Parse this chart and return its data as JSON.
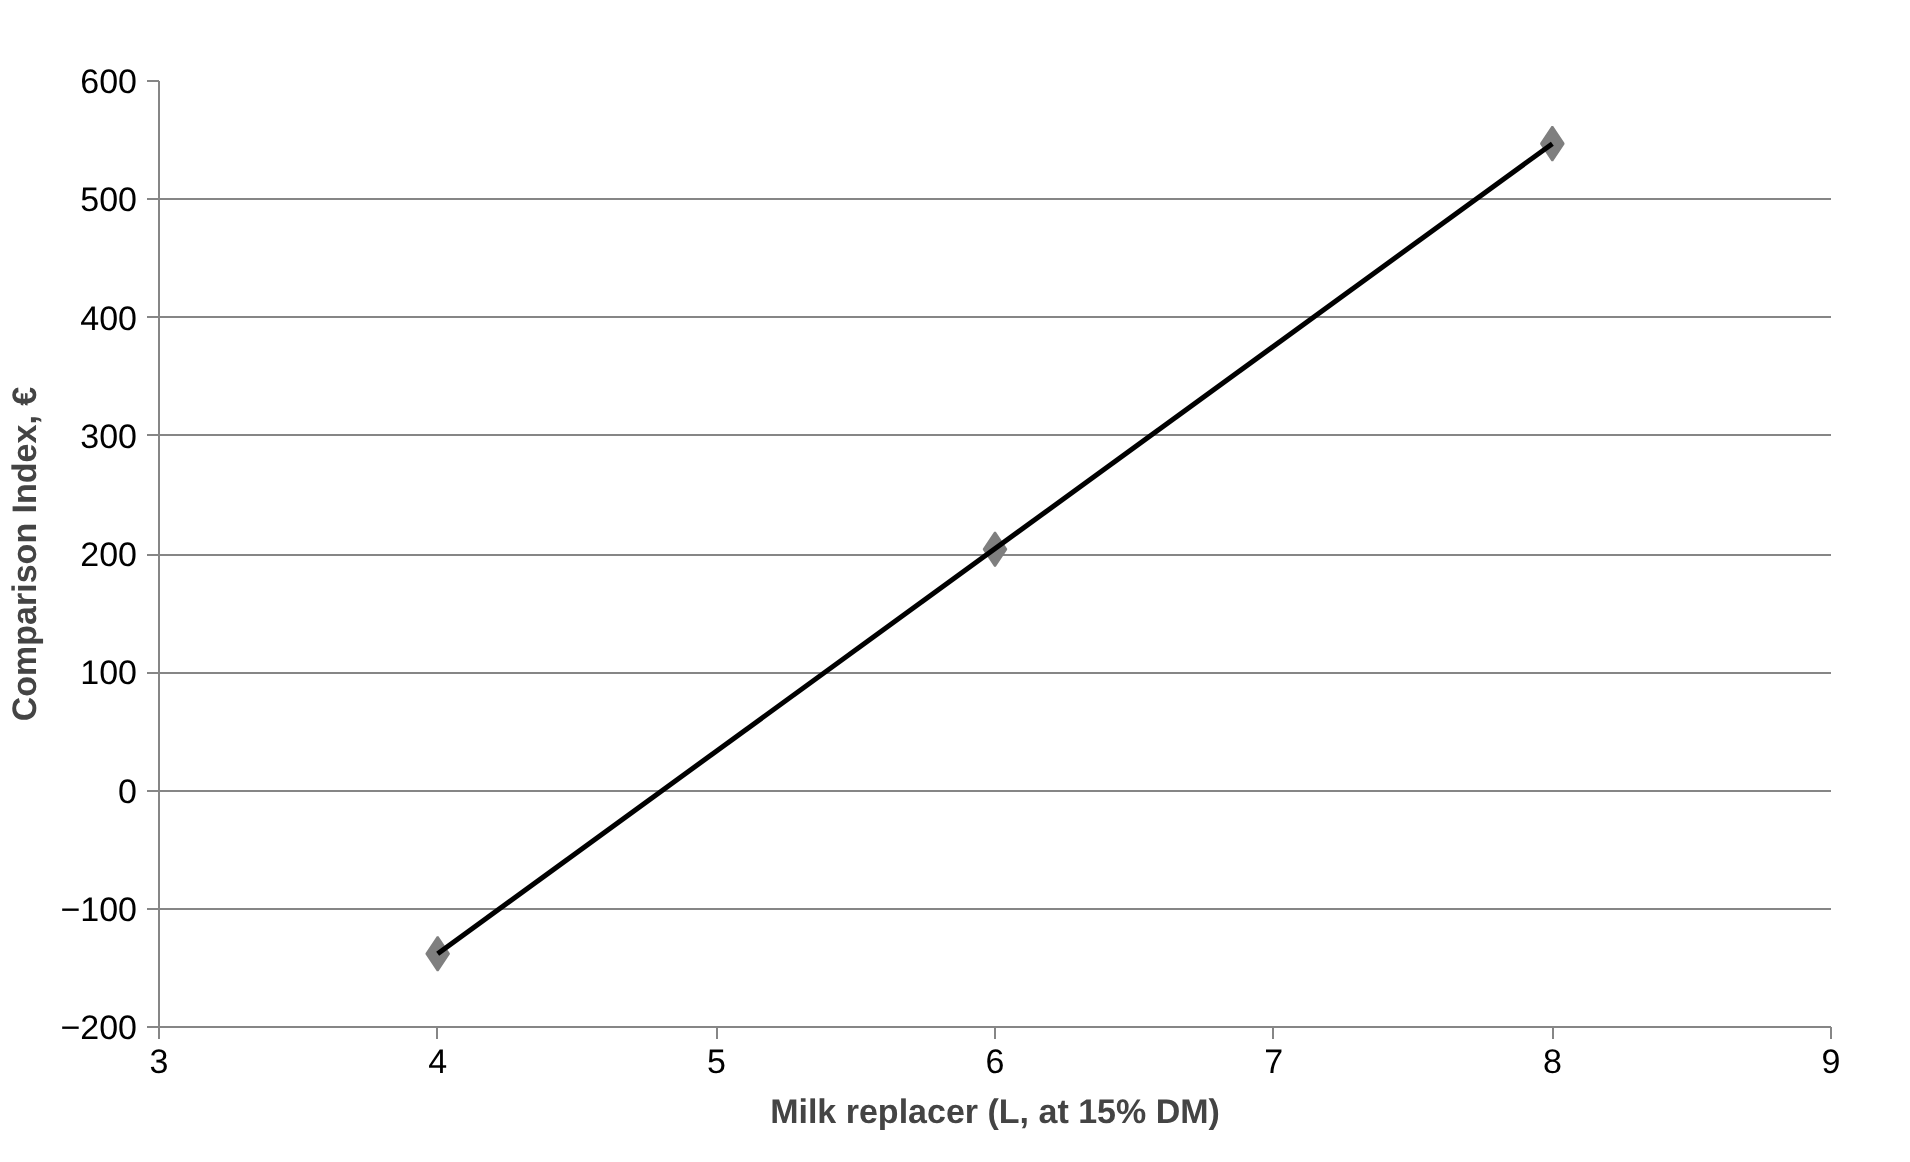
{
  "chart_data": {
    "type": "scatter",
    "xlabel": "Milk replacer (L, at 15% DM)",
    "ylabel": "Comparison Index, €",
    "series": [
      {
        "color": "#7f7f7f",
        "marker": "diamond",
        "x": [
          4,
          6,
          8
        ],
        "values": [
          -138,
          204,
          547
        ]
      },
      {
        "type": "line",
        "color": "#000000",
        "x": [
          4,
          8
        ],
        "values": [
          -138,
          547
        ]
      }
    ],
    "xlim": [
      3,
      9
    ],
    "xticks": [
      3,
      4,
      5,
      6,
      7,
      8,
      9
    ],
    "ylim": [
      -200,
      600
    ],
    "yticks": [
      -200,
      -100,
      0,
      100,
      200,
      300,
      400,
      500,
      600
    ],
    "grid": "y"
  }
}
